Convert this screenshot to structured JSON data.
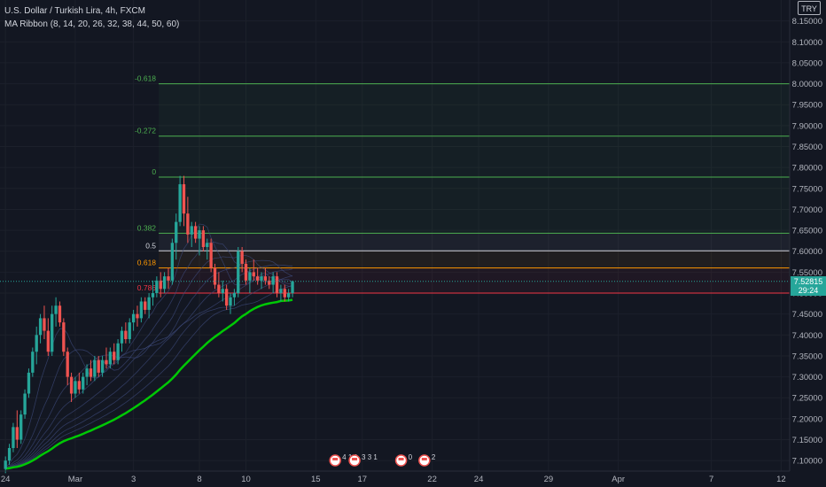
{
  "legend": {
    "symbol_line": "U.S. Dollar / Turkish Lira, 4h, FXCM",
    "indicator_line": "MA Ribbon (8, 14, 20, 26, 32, 38, 44, 50, 60)"
  },
  "currency_badge": "TRY",
  "price_tag": {
    "price": "7.52815",
    "countdown": "29:24"
  },
  "colors": {
    "background": "#131722",
    "up": "#26a69a",
    "down": "#ef5350",
    "ribbon_main": "#00c805",
    "fib_green": "#4caf50",
    "fib_orange": "#ff9800",
    "fib_red": "#f23645"
  },
  "chart_data": {
    "type": "candlestick",
    "symbol": "USD/TRY",
    "timeframe": "4h",
    "ylim": [
      7.075,
      8.2
    ],
    "y_ticks": [
      "8.15000",
      "8.10000",
      "8.05000",
      "8.00000",
      "7.95000",
      "7.90000",
      "7.85000",
      "7.80000",
      "7.75000",
      "7.70000",
      "7.65000",
      "7.60000",
      "7.55000",
      "7.50000",
      "7.45000",
      "7.40000",
      "7.35000",
      "7.30000",
      "7.25000",
      "7.20000",
      "7.15000",
      "7.10000"
    ],
    "x_ticks": [
      {
        "label": "24",
        "bar": 0
      },
      {
        "label": "Mar",
        "bar": 18
      },
      {
        "label": "3",
        "bar": 33
      },
      {
        "label": "8",
        "bar": 50
      },
      {
        "label": "10",
        "bar": 62
      },
      {
        "label": "15",
        "bar": 80
      },
      {
        "label": "17",
        "bar": 92
      },
      {
        "label": "22",
        "bar": 110
      },
      {
        "label": "24",
        "bar": 122
      },
      {
        "label": "29",
        "bar": 140
      },
      {
        "label": "Apr",
        "bar": 158
      },
      {
        "label": "7",
        "bar": 182
      },
      {
        "label": "12",
        "bar": 200
      }
    ],
    "bars_total": 202,
    "candles": [
      [
        7.08,
        7.11,
        7.07,
        7.1
      ],
      [
        7.1,
        7.14,
        7.09,
        7.13
      ],
      [
        7.13,
        7.19,
        7.12,
        7.18
      ],
      [
        7.18,
        7.22,
        7.13,
        7.15
      ],
      [
        7.15,
        7.22,
        7.14,
        7.21
      ],
      [
        7.21,
        7.27,
        7.2,
        7.26
      ],
      [
        7.26,
        7.32,
        7.25,
        7.31
      ],
      [
        7.31,
        7.37,
        7.3,
        7.36
      ],
      [
        7.36,
        7.42,
        7.33,
        7.4
      ],
      [
        7.4,
        7.45,
        7.38,
        7.44
      ],
      [
        7.44,
        7.47,
        7.39,
        7.41
      ],
      [
        7.41,
        7.44,
        7.35,
        7.36
      ],
      [
        7.36,
        7.47,
        7.35,
        7.45
      ],
      [
        7.45,
        7.49,
        7.42,
        7.47
      ],
      [
        7.47,
        7.48,
        7.42,
        7.43
      ],
      [
        7.43,
        7.44,
        7.35,
        7.36
      ],
      [
        7.36,
        7.37,
        7.28,
        7.3
      ],
      [
        7.3,
        7.31,
        7.24,
        7.26
      ],
      [
        7.26,
        7.3,
        7.25,
        7.29
      ],
      [
        7.29,
        7.31,
        7.26,
        7.27
      ],
      [
        7.27,
        7.31,
        7.26,
        7.3
      ],
      [
        7.3,
        7.33,
        7.28,
        7.32
      ],
      [
        7.32,
        7.34,
        7.29,
        7.3
      ],
      [
        7.3,
        7.35,
        7.29,
        7.34
      ],
      [
        7.34,
        7.35,
        7.3,
        7.31
      ],
      [
        7.31,
        7.35,
        7.3,
        7.34
      ],
      [
        7.34,
        7.37,
        7.32,
        7.33
      ],
      [
        7.33,
        7.37,
        7.32,
        7.36
      ],
      [
        7.36,
        7.38,
        7.33,
        7.34
      ],
      [
        7.34,
        7.39,
        7.33,
        7.38
      ],
      [
        7.38,
        7.42,
        7.36,
        7.41
      ],
      [
        7.41,
        7.43,
        7.38,
        7.39
      ],
      [
        7.39,
        7.44,
        7.38,
        7.43
      ],
      [
        7.43,
        7.46,
        7.41,
        7.45
      ],
      [
        7.45,
        7.47,
        7.42,
        7.44
      ],
      [
        7.44,
        7.49,
        7.43,
        7.48
      ],
      [
        7.48,
        7.49,
        7.45,
        7.46
      ],
      [
        7.46,
        7.5,
        7.44,
        7.49
      ],
      [
        7.49,
        7.53,
        7.47,
        7.5
      ],
      [
        7.5,
        7.54,
        7.49,
        7.53
      ],
      [
        7.53,
        7.55,
        7.49,
        7.51
      ],
      [
        7.51,
        7.55,
        7.5,
        7.54
      ],
      [
        7.54,
        7.56,
        7.51,
        7.53
      ],
      [
        7.53,
        7.63,
        7.52,
        7.62
      ],
      [
        7.62,
        7.69,
        7.58,
        7.67
      ],
      [
        7.67,
        7.78,
        7.66,
        7.76
      ],
      [
        7.76,
        7.78,
        7.66,
        7.69
      ],
      [
        7.69,
        7.73,
        7.62,
        7.64
      ],
      [
        7.64,
        7.67,
        7.61,
        7.66
      ],
      [
        7.66,
        7.67,
        7.62,
        7.63
      ],
      [
        7.63,
        7.66,
        7.59,
        7.65
      ],
      [
        7.65,
        7.66,
        7.6,
        7.61
      ],
      [
        7.61,
        7.63,
        7.58,
        7.62
      ],
      [
        7.62,
        7.63,
        7.55,
        7.56
      ],
      [
        7.56,
        7.57,
        7.51,
        7.52
      ],
      [
        7.52,
        7.55,
        7.49,
        7.5
      ],
      [
        7.5,
        7.53,
        7.48,
        7.51
      ],
      [
        7.51,
        7.52,
        7.46,
        7.47
      ],
      [
        7.47,
        7.5,
        7.45,
        7.49
      ],
      [
        7.49,
        7.51,
        7.47,
        7.5
      ],
      [
        7.5,
        7.61,
        7.49,
        7.6
      ],
      [
        7.6,
        7.61,
        7.55,
        7.57
      ],
      [
        7.57,
        7.58,
        7.52,
        7.53
      ],
      [
        7.53,
        7.56,
        7.5,
        7.55
      ],
      [
        7.55,
        7.58,
        7.53,
        7.54
      ],
      [
        7.54,
        7.56,
        7.52,
        7.53
      ],
      [
        7.53,
        7.55,
        7.51,
        7.54
      ],
      [
        7.54,
        7.56,
        7.52,
        7.53
      ],
      [
        7.53,
        7.54,
        7.51,
        7.52
      ],
      [
        7.52,
        7.55,
        7.5,
        7.54
      ],
      [
        7.54,
        7.55,
        7.49,
        7.5
      ],
      [
        7.5,
        7.52,
        7.48,
        7.51
      ],
      [
        7.51,
        7.52,
        7.48,
        7.49
      ],
      [
        7.49,
        7.51,
        7.48,
        7.5
      ],
      [
        7.5,
        7.53,
        7.49,
        7.528
      ]
    ],
    "candle_start_bar": 0,
    "ma_ribbon": {
      "periods": [
        8,
        14,
        20,
        26,
        32,
        38,
        44,
        50,
        60
      ],
      "highlighted_period": 60
    },
    "fibonacci": {
      "from_bar": 40,
      "levels": [
        {
          "label": "-0.618",
          "price": 8.0,
          "color": "#4caf50"
        },
        {
          "label": "-0.272",
          "price": 7.875,
          "color": "#4caf50"
        },
        {
          "label": "0",
          "price": 7.777,
          "color": "#4caf50"
        },
        {
          "label": "0.382",
          "price": 7.643,
          "color": "#4caf50"
        },
        {
          "label": "0.5",
          "price": 7.601,
          "color": "#d1d4dc"
        },
        {
          "label": "0.618",
          "price": 7.56,
          "color": "#ff9800"
        },
        {
          "label": "0.786",
          "price": 7.5,
          "color": "#f23645"
        }
      ]
    },
    "event_markers": [
      {
        "bar": 85,
        "label": "4 1 1"
      },
      {
        "bar": 90,
        "label": "3 3 1"
      },
      {
        "bar": 102,
        "label": "0"
      },
      {
        "bar": 108,
        "label": "2"
      }
    ]
  }
}
